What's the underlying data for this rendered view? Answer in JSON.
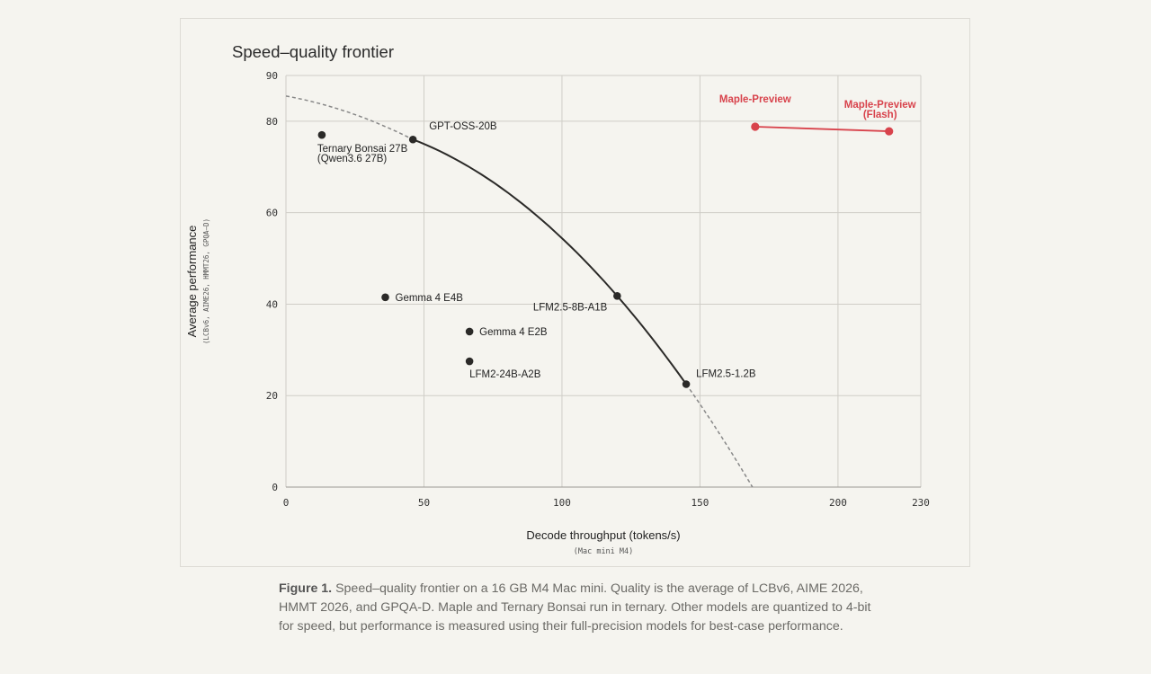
{
  "caption": {
    "lead": "Figure 1.",
    "text": " Speed–quality frontier on a 16 GB M4 Mac mini. Quality is the average of LCBv6, AIME 2026, HMMT 2026, and GPQA-D. Maple and Ternary Bonsai run in ternary. Other models are quantized to 4-bit for speed, but performance is measured using their full-precision models for best-case performance."
  },
  "chart_data": {
    "type": "scatter",
    "title": "Speed–quality frontier",
    "xlabel": "Decode throughput (tokens/s)",
    "xlabel_sub": "(Mac mini M4)",
    "ylabel": "Average performance",
    "ylabel_sub": "(LCBv6, AIME26, HMMT26, GPQA–D)",
    "xlim": [
      0,
      230
    ],
    "ylim": [
      0,
      90
    ],
    "xticks": [
      0,
      50,
      100,
      150,
      200,
      230
    ],
    "yticks": [
      0,
      20,
      40,
      60,
      80,
      90
    ],
    "grid": true,
    "colors": {
      "points": "#2b2a28",
      "highlight": "#d8434c",
      "frontier": "#2b2a28",
      "frontier_ext": "#888888",
      "grid": "#cfcdc7"
    },
    "points": [
      {
        "name": "Ternary Bonsai 27B\n(Qwen3.6 27B)",
        "x": 13,
        "y": 77
      },
      {
        "name": "GPT-OSS-20B",
        "x": 46,
        "y": 76
      },
      {
        "name": "Gemma 4 E4B",
        "x": 36,
        "y": 41.5
      },
      {
        "name": "Gemma 4 E2B",
        "x": 66.5,
        "y": 34
      },
      {
        "name": "LFM2-24B-A2B",
        "x": 66.5,
        "y": 27.5
      },
      {
        "name": "LFM2.5-8B-A1B",
        "x": 120,
        "y": 41.8
      },
      {
        "name": "LFM2.5-1.2B",
        "x": 145,
        "y": 22.5
      }
    ],
    "highlight_series": {
      "points": [
        {
          "name": "Maple-Preview",
          "x": 170,
          "y": 78.8
        },
        {
          "name": "Maple-Preview\n(Flash)",
          "x": 218.5,
          "y": 77.8
        }
      ]
    },
    "frontier": {
      "solid": [
        [
          46,
          76
        ],
        [
          120,
          41.8
        ],
        [
          145,
          22.5
        ]
      ],
      "dashed_start": [
        0,
        85.5
      ],
      "dashed_end": [
        169,
        0
      ]
    }
  }
}
